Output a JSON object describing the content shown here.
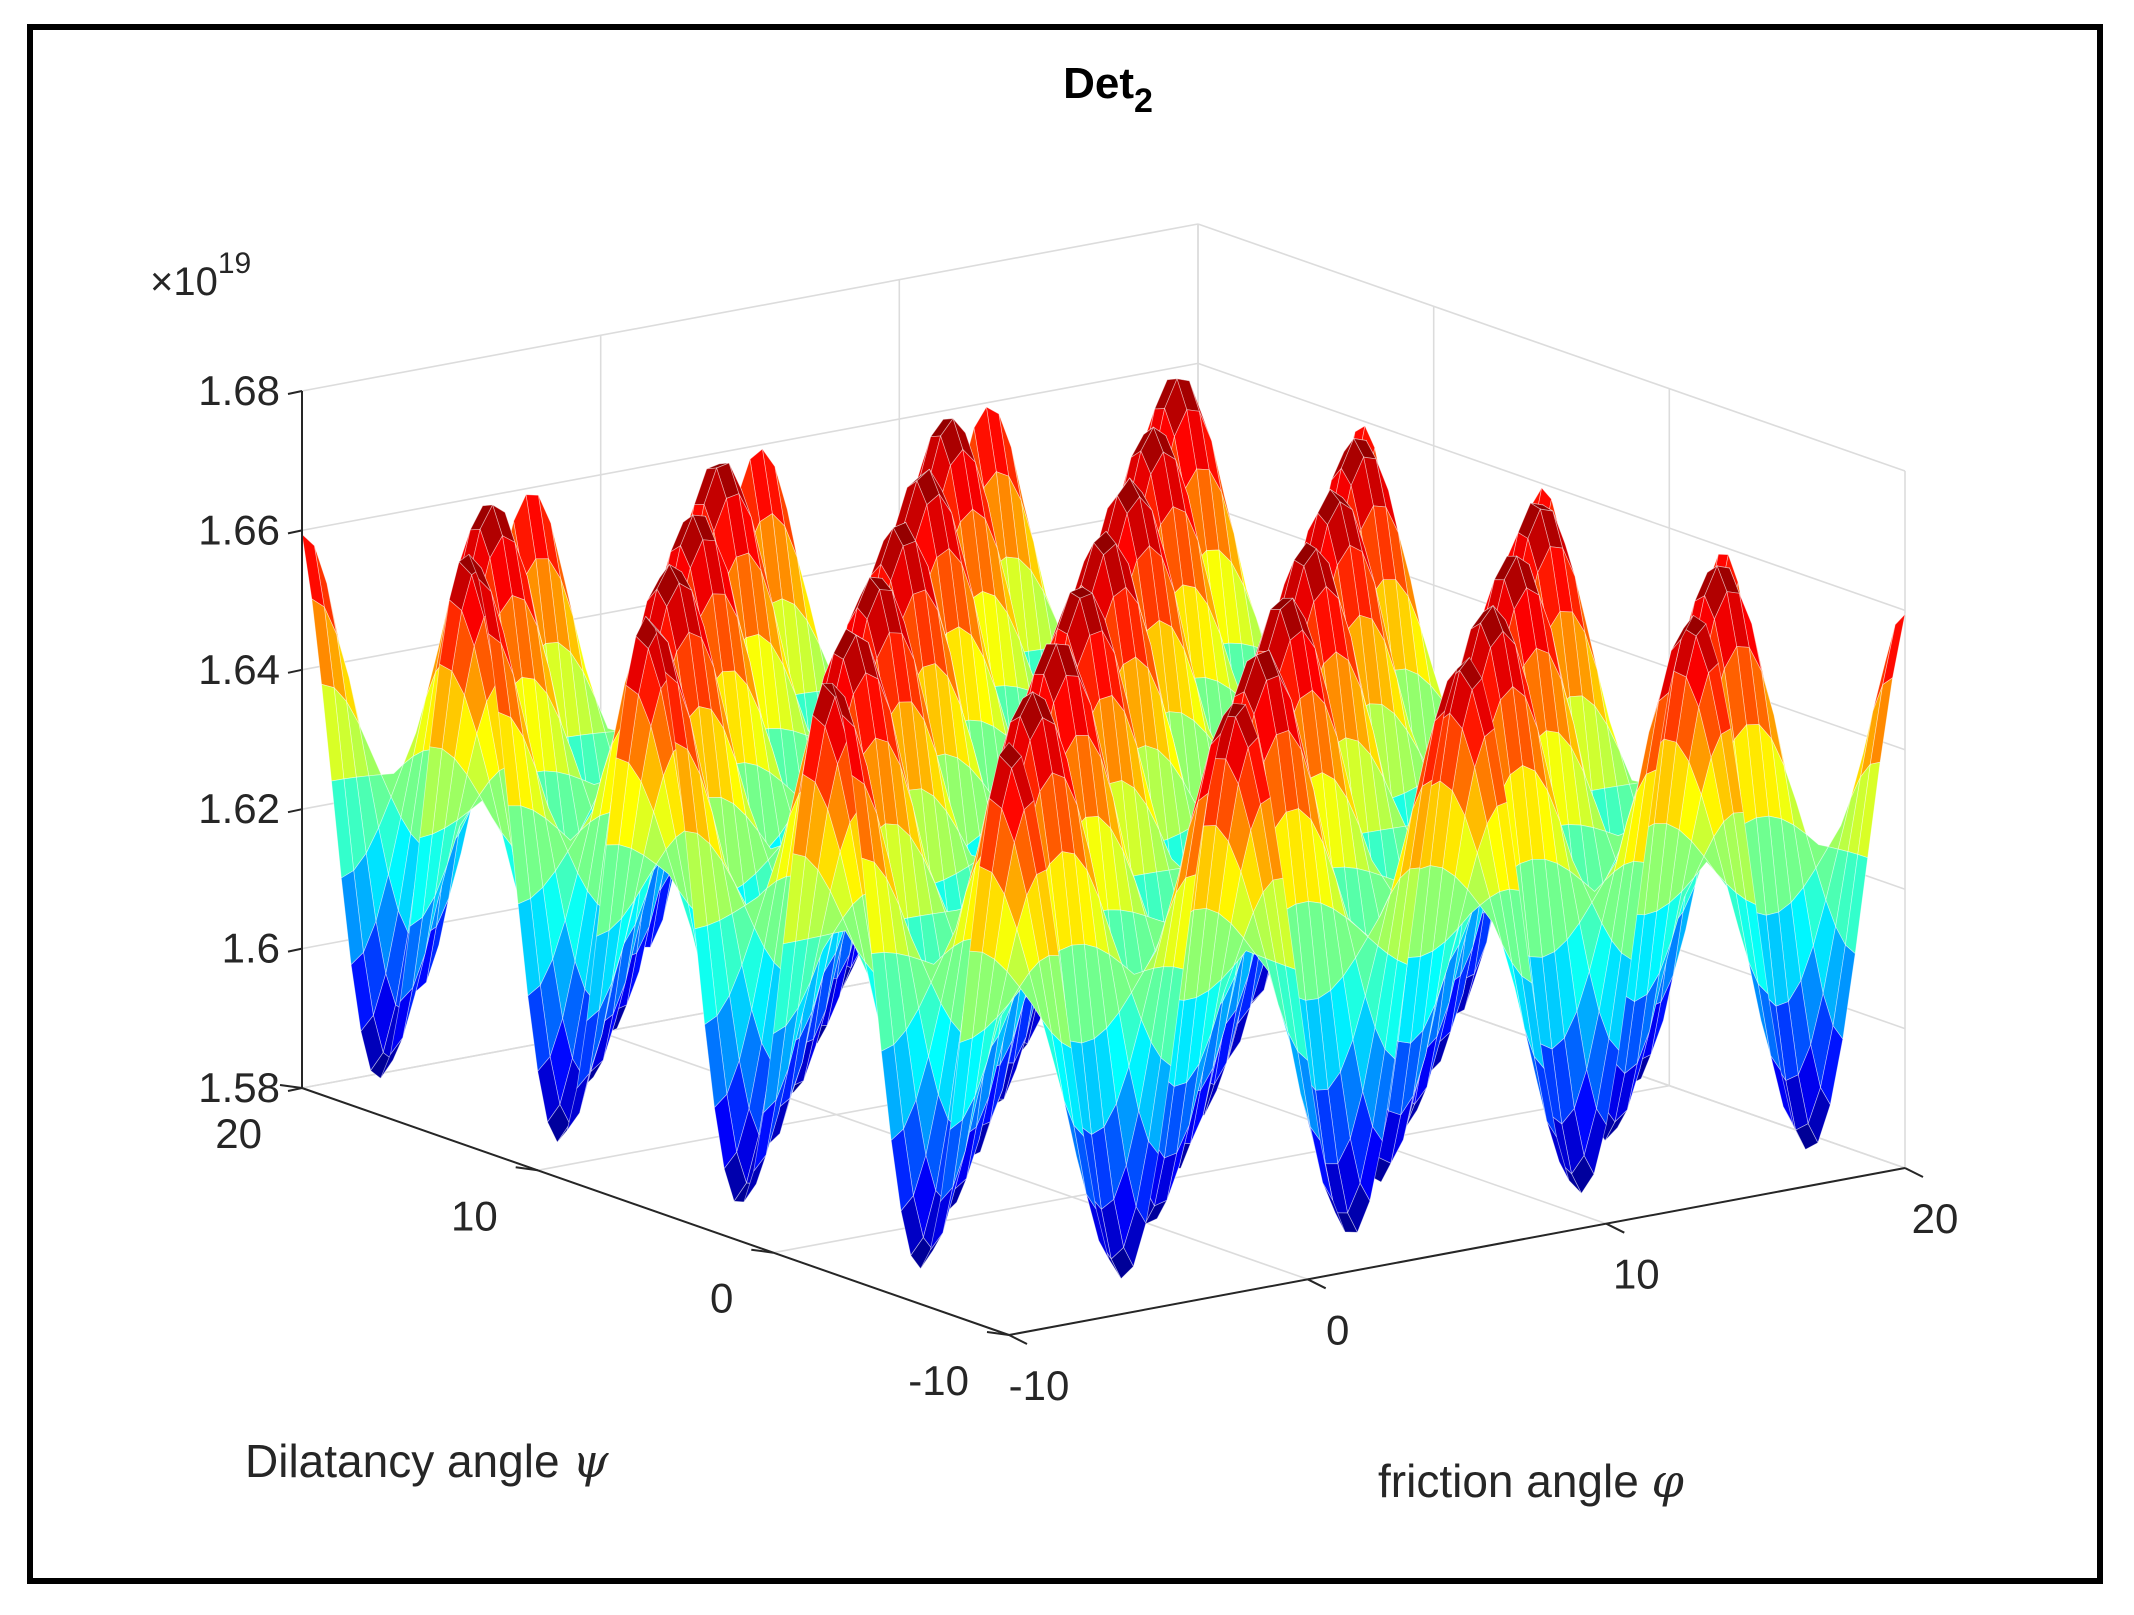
{
  "chart_data": {
    "type": "surface",
    "title_base": "Det",
    "title_sub": "2",
    "xlabel": "friction angle",
    "xlabel_symbol": "φ",
    "ylabel": "Dilatancy angle",
    "ylabel_symbol": "ψ",
    "zlabel": "",
    "z_multiplier_prefix": "×10",
    "z_multiplier_exp": "19",
    "xlim": [
      -10,
      20
    ],
    "ylim": [
      -10,
      20
    ],
    "zlim": [
      1.58,
      1.68
    ],
    "x_ticks": [
      -10,
      0,
      10,
      20
    ],
    "x_tick_labels": [
      "-10",
      "0",
      "10",
      "20"
    ],
    "y_ticks": [
      -10,
      0,
      10,
      20
    ],
    "y_tick_labels": [
      "-10",
      "0",
      "10",
      "20"
    ],
    "z_ticks": [
      1.58,
      1.6,
      1.62,
      1.64,
      1.66,
      1.68
    ],
    "z_tick_labels": [
      "1.58",
      "1.6",
      "1.62",
      "1.64",
      "1.66",
      "1.68"
    ],
    "surface_model": {
      "description": "oscillatory surface z = base + amp*cos(kx*(x - x0))*cos(ky*(y - y0))",
      "base": 1.625,
      "amplitude": 0.04,
      "kx": 0.82,
      "ky": 0.82,
      "x0": -10,
      "y0": -10,
      "grid_n": 72
    },
    "colormap": "jet",
    "grid": true
  }
}
